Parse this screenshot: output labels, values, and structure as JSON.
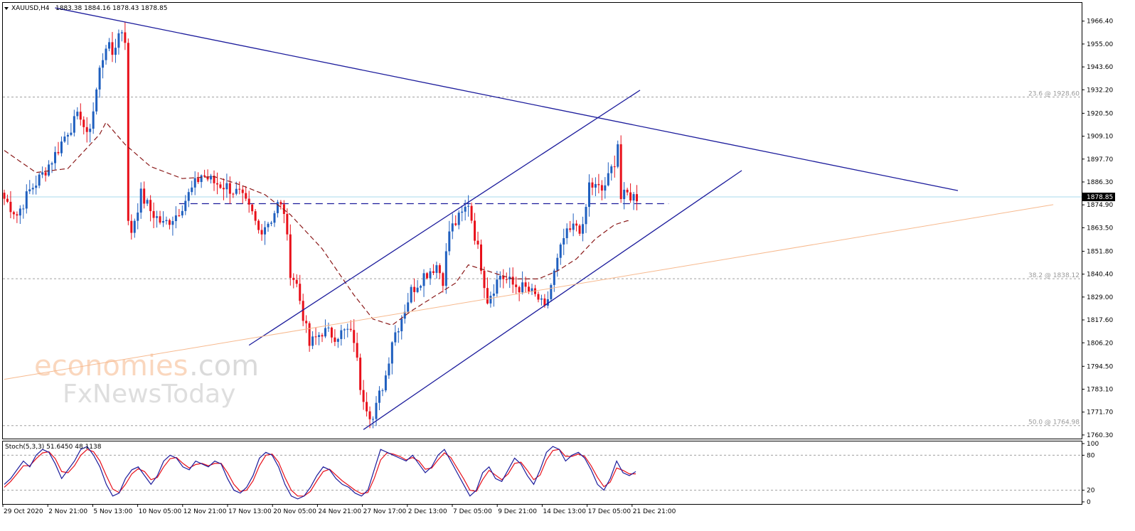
{
  "header": {
    "symbol": "XAUUSD,H4",
    "ohlc": "1883.38 1884.16 1878.43 1878.85"
  },
  "stoch_header": "Stoch(5,3,3) 51.6450 48.1138",
  "watermark": {
    "line1_a": "economies",
    "line1_b": ".com",
    "line2": "FxNewsToday"
  },
  "colors": {
    "bull": "#1f5fbf",
    "bear": "#e8101a",
    "trend": "#1c1c9c",
    "ma": "#8b1a1a",
    "current_line": "#a8d8ee",
    "fib_line": "#a0a0a0",
    "orange_line": "#f7b98e",
    "stoch_main": "#1c1c9c",
    "stoch_signal": "#e8101a"
  },
  "chart_data": {
    "type": "candlestick",
    "symbol": "XAUUSD",
    "timeframe": "H4",
    "ylim": [
      1758.5,
      1975.5
    ],
    "y_ticks": [
      "1966.40",
      "1955.00",
      "1943.60",
      "1932.20",
      "1920.50",
      "1909.10",
      "1897.70",
      "1886.30",
      "1874.90",
      "1863.50",
      "1851.80",
      "1840.40",
      "1829.00",
      "1817.60",
      "1806.20",
      "1794.50",
      "1783.10",
      "1771.70",
      "1760.30"
    ],
    "current_price": "1878.85",
    "x_ticks": [
      "29 Oct 2020",
      "2 Nov 21:00",
      "5 Nov 13:00",
      "10 Nov 05:00",
      "12 Nov 21:00",
      "17 Nov 13:00",
      "20 Nov 05:00",
      "24 Nov 21:00",
      "27 Nov 17:00",
      "2 Dec 13:00",
      "7 Dec 05:00",
      "9 Dec 21:00",
      "14 Dec 13:00",
      "17 Dec 05:00",
      "21 Dec 21:00"
    ],
    "fib_levels": [
      {
        "label": "23.6 @ 1928.60",
        "price": 1928.6
      },
      {
        "label": "38.2 @ 1838.12",
        "price": 1838.12
      },
      {
        "label": "50.0 @ 1764.98",
        "price": 1764.98
      }
    ],
    "horizontal_dashed": 1875.5,
    "close_path": [
      [
        0,
        1878
      ],
      [
        4,
        1870
      ],
      [
        8,
        1882
      ],
      [
        12,
        1890
      ],
      [
        16,
        1900
      ],
      [
        20,
        1912
      ],
      [
        24,
        1920
      ],
      [
        26,
        1908
      ],
      [
        28,
        1922
      ],
      [
        30,
        1942
      ],
      [
        32,
        1955
      ],
      [
        34,
        1950
      ],
      [
        36,
        1960
      ],
      [
        37,
        1962
      ],
      [
        38,
        1958
      ],
      [
        39,
        1865
      ],
      [
        40,
        1862
      ],
      [
        43,
        1880
      ],
      [
        46,
        1872
      ],
      [
        50,
        1865
      ],
      [
        54,
        1870
      ],
      [
        58,
        1880
      ],
      [
        62,
        1890
      ],
      [
        66,
        1886
      ],
      [
        70,
        1884
      ],
      [
        74,
        1880
      ],
      [
        78,
        1870
      ],
      [
        80,
        1862
      ],
      [
        84,
        1868
      ],
      [
        86,
        1875
      ],
      [
        88,
        1872
      ],
      [
        90,
        1842
      ],
      [
        92,
        1835
      ],
      [
        94,
        1820
      ],
      [
        96,
        1805
      ],
      [
        100,
        1812
      ],
      [
        104,
        1810
      ],
      [
        108,
        1812
      ],
      [
        110,
        1808
      ],
      [
        112,
        1785
      ],
      [
        114,
        1775
      ],
      [
        116,
        1768
      ],
      [
        118,
        1780
      ],
      [
        120,
        1790
      ],
      [
        122,
        1808
      ],
      [
        124,
        1815
      ],
      [
        128,
        1832
      ],
      [
        132,
        1840
      ],
      [
        136,
        1845
      ],
      [
        138,
        1838
      ],
      [
        140,
        1862
      ],
      [
        144,
        1870
      ],
      [
        146,
        1876
      ],
      [
        148,
        1860
      ],
      [
        150,
        1845
      ],
      [
        152,
        1828
      ],
      [
        156,
        1840
      ],
      [
        160,
        1835
      ],
      [
        164,
        1833
      ],
      [
        168,
        1828
      ],
      [
        170,
        1822
      ],
      [
        172,
        1835
      ],
      [
        176,
        1858
      ],
      [
        180,
        1865
      ],
      [
        182,
        1862
      ],
      [
        184,
        1885
      ],
      [
        188,
        1882
      ],
      [
        190,
        1888
      ],
      [
        192,
        1897
      ],
      [
        193,
        1906
      ],
      [
        194,
        1878
      ],
      [
        196,
        1880
      ],
      [
        198,
        1879
      ]
    ],
    "ma_path": [
      [
        0,
        1902
      ],
      [
        10,
        1891
      ],
      [
        20,
        1893
      ],
      [
        30,
        1910
      ],
      [
        32,
        1916
      ],
      [
        38,
        1905
      ],
      [
        46,
        1894
      ],
      [
        56,
        1888
      ],
      [
        66,
        1889
      ],
      [
        74,
        1885
      ],
      [
        82,
        1880
      ],
      [
        90,
        1870
      ],
      [
        100,
        1853
      ],
      [
        110,
        1830
      ],
      [
        116,
        1818
      ],
      [
        122,
        1815
      ],
      [
        128,
        1822
      ],
      [
        136,
        1830
      ],
      [
        142,
        1836
      ],
      [
        146,
        1845
      ],
      [
        152,
        1842
      ],
      [
        160,
        1838
      ],
      [
        168,
        1838
      ],
      [
        174,
        1842
      ],
      [
        180,
        1848
      ],
      [
        186,
        1858
      ],
      [
        192,
        1865
      ],
      [
        196,
        1867
      ]
    ],
    "trendlines": [
      {
        "from": [
          16,
          1973
        ],
        "to": [
          300,
          1882
        ]
      },
      {
        "from": [
          77,
          1805
        ],
        "to": [
          200,
          1932
        ]
      },
      {
        "from": [
          113,
          1763
        ],
        "to": [
          232,
          1892
        ]
      },
      {
        "from": [
          0,
          1788
        ],
        "to": [
          330,
          1875
        ]
      }
    ],
    "stochastic": {
      "params": "5,3,3",
      "main_value": "51.6450",
      "signal_value": "48.1138",
      "ylim": [
        0,
        100
      ],
      "y_ticks": [
        "100",
        "80",
        "20",
        "0"
      ],
      "levels": [
        80,
        20
      ],
      "main": [
        30,
        40,
        55,
        70,
        60,
        80,
        90,
        85,
        65,
        40,
        55,
        70,
        90,
        95,
        80,
        60,
        30,
        10,
        15,
        40,
        55,
        60,
        45,
        30,
        45,
        70,
        80,
        75,
        60,
        55,
        70,
        65,
        60,
        70,
        65,
        40,
        20,
        15,
        25,
        45,
        75,
        85,
        80,
        60,
        30,
        10,
        5,
        10,
        25,
        45,
        60,
        55,
        40,
        30,
        25,
        15,
        10,
        20,
        55,
        90,
        85,
        80,
        75,
        70,
        80,
        65,
        50,
        60,
        80,
        90,
        70,
        50,
        30,
        10,
        20,
        50,
        60,
        40,
        35,
        55,
        75,
        65,
        45,
        30,
        55,
        85,
        95,
        90,
        70,
        80,
        85,
        75,
        55,
        30,
        20,
        40,
        70,
        50,
        45,
        52
      ],
      "signal": [
        25,
        35,
        48,
        62,
        62,
        74,
        84,
        86,
        74,
        52,
        50,
        62,
        80,
        90,
        86,
        70,
        45,
        22,
        16,
        30,
        48,
        57,
        52,
        38,
        42,
        60,
        74,
        76,
        66,
        58,
        64,
        66,
        62,
        66,
        66,
        50,
        30,
        18,
        20,
        36,
        62,
        80,
        82,
        68,
        42,
        20,
        10,
        10,
        18,
        36,
        52,
        56,
        46,
        36,
        28,
        20,
        14,
        16,
        40,
        72,
        84,
        82,
        78,
        72,
        76,
        70,
        56,
        58,
        72,
        84,
        76,
        58,
        40,
        20,
        18,
        38,
        54,
        46,
        38,
        48,
        66,
        68,
        54,
        38,
        46,
        72,
        88,
        90,
        78,
        78,
        82,
        78,
        62,
        42,
        26,
        34,
        58,
        54,
        48,
        48
      ]
    }
  }
}
